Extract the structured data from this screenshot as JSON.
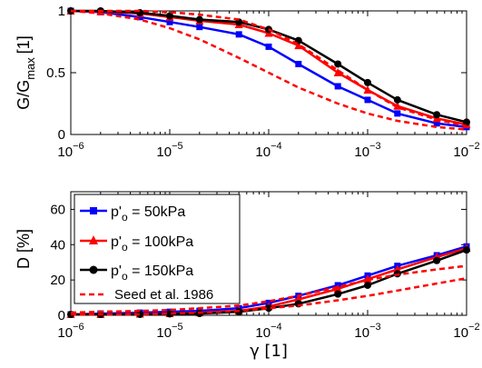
{
  "chart_data": [
    {
      "type": "line",
      "ylabel": "G/G",
      "ylabel_sub": "max",
      "ylabel_unit": "[1]",
      "xscale": "log",
      "xlim": [
        1e-06,
        0.01
      ],
      "ylim": [
        0,
        1
      ],
      "x_ticks": [
        {
          "base": "10",
          "exp": "−6",
          "value": 1e-06
        },
        {
          "base": "10",
          "exp": "−5",
          "value": 1e-05
        },
        {
          "base": "10",
          "exp": "−4",
          "value": 0.0001
        },
        {
          "base": "10",
          "exp": "−3",
          "value": 0.001
        },
        {
          "base": "10",
          "exp": "−2",
          "value": 0.01
        }
      ],
      "y_ticks": [
        {
          "label": "0",
          "value": 0
        },
        {
          "label": "0.5",
          "value": 0.5
        },
        {
          "label": "1",
          "value": 1
        }
      ],
      "x": [
        1e-06,
        2e-06,
        5e-06,
        1e-05,
        2e-05,
        5e-05,
        0.0001,
        0.0002,
        0.0005,
        0.001,
        0.002,
        0.005,
        0.01
      ],
      "series": [
        {
          "key": "p50",
          "color": "#0000ff",
          "marker": "square",
          "values": [
            1.0,
            0.99,
            0.95,
            0.91,
            0.87,
            0.81,
            0.71,
            0.57,
            0.39,
            0.28,
            0.17,
            0.09,
            0.06
          ]
        },
        {
          "key": "p100",
          "color": "#ff0000",
          "marker": "triangle",
          "values": [
            1.0,
            0.995,
            0.98,
            0.95,
            0.92,
            0.89,
            0.82,
            0.72,
            0.5,
            0.36,
            0.23,
            0.13,
            0.08
          ]
        },
        {
          "key": "p150",
          "color": "#000000",
          "marker": "circle",
          "values": [
            1.0,
            1.0,
            0.985,
            0.96,
            0.93,
            0.91,
            0.85,
            0.76,
            0.57,
            0.42,
            0.28,
            0.16,
            0.1
          ]
        },
        {
          "key": "seed_upper",
          "color": "#ff0000",
          "dashed": true,
          "values": [
            1.0,
            1.0,
            1.0,
            0.99,
            0.97,
            0.93,
            0.85,
            0.73,
            0.52,
            0.36,
            0.22,
            0.12,
            0.07
          ]
        },
        {
          "key": "seed_lower",
          "color": "#ff0000",
          "dashed": true,
          "values": [
            1.0,
            0.98,
            0.93,
            0.86,
            0.77,
            0.62,
            0.5,
            0.38,
            0.25,
            0.17,
            0.11,
            0.06,
            0.04
          ]
        }
      ]
    },
    {
      "type": "line",
      "ylabel": "D [%]",
      "xlabel": "γ [1]",
      "xscale": "log",
      "xlim": [
        1e-06,
        0.01
      ],
      "ylim": [
        0,
        70
      ],
      "x_ticks": [
        {
          "base": "10",
          "exp": "−6",
          "value": 1e-06
        },
        {
          "base": "10",
          "exp": "−5",
          "value": 1e-05
        },
        {
          "base": "10",
          "exp": "−4",
          "value": 0.0001
        },
        {
          "base": "10",
          "exp": "−3",
          "value": 0.001
        },
        {
          "base": "10",
          "exp": "−2",
          "value": 0.01
        }
      ],
      "y_ticks": [
        {
          "label": "0",
          "value": 0
        },
        {
          "label": "20",
          "value": 20
        },
        {
          "label": "40",
          "value": 40
        },
        {
          "label": "60",
          "value": 60
        }
      ],
      "x": [
        1e-06,
        2e-06,
        5e-06,
        1e-05,
        2e-05,
        5e-05,
        0.0001,
        0.0002,
        0.0005,
        0.001,
        0.002,
        0.005,
        0.01
      ],
      "series": [
        {
          "key": "p50",
          "name_main": "p'",
          "name_sub": "o",
          "name_rest": " = 50kPa",
          "color": "#0000ff",
          "marker": "square",
          "values": [
            0.5,
            1,
            1.5,
            2,
            2.5,
            4,
            7,
            11,
            17,
            22.5,
            28,
            34,
            39
          ]
        },
        {
          "key": "p100",
          "name_main": "p'",
          "name_sub": "o",
          "name_rest": " = 100kPa",
          "color": "#ff0000",
          "marker": "triangle",
          "values": [
            0.5,
            0.5,
            0.8,
            1,
            1.5,
            2.5,
            5,
            9,
            15,
            20.5,
            26,
            33,
            38
          ]
        },
        {
          "key": "p150",
          "name_main": "p'",
          "name_sub": "o",
          "name_rest": " = 150kPa",
          "color": "#000000",
          "marker": "circle",
          "values": [
            0.5,
            0.5,
            0.5,
            0.8,
            1,
            2,
            4,
            6.5,
            12,
            17,
            23.5,
            31,
            37
          ]
        },
        {
          "key": "seed_upper",
          "name": "Seed et al. 1986",
          "color": "#ff0000",
          "dashed": true,
          "values": [
            1.5,
            2,
            2.5,
            3,
            4,
            5.5,
            8,
            11,
            16,
            20,
            23,
            26,
            28
          ]
        },
        {
          "key": "seed_lower",
          "color": "#ff0000",
          "dashed": true,
          "values": [
            0.5,
            0.5,
            0.5,
            1,
            1.5,
            2.5,
            4,
            5.5,
            8.5,
            11,
            14,
            18,
            21
          ]
        }
      ],
      "legend_position": "top-left"
    }
  ]
}
